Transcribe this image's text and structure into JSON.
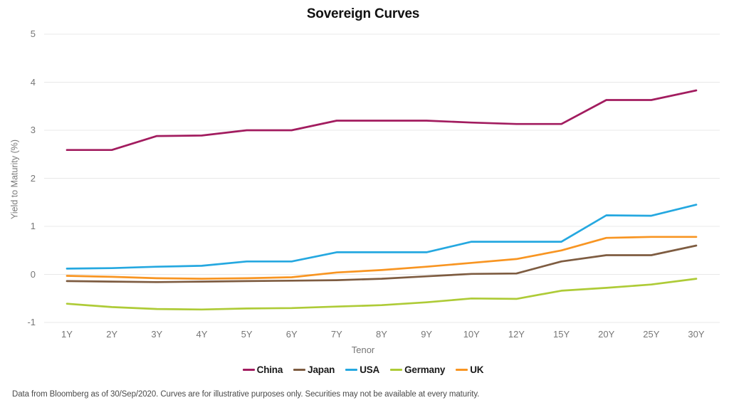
{
  "header": {
    "title": "Sovereign Curves"
  },
  "chart_data": {
    "type": "line",
    "title": "Sovereign Curves",
    "xlabel": "Tenor",
    "ylabel": "Yield to Maturity (%)",
    "ylim": [
      -1,
      5
    ],
    "yticks": [
      5,
      4,
      3,
      2,
      1,
      0,
      -1
    ],
    "grid": "horizontal-only",
    "grid_color": "#e8e8e8",
    "legend_position": "bottom-center",
    "categories": [
      "1Y",
      "2Y",
      "3Y",
      "4Y",
      "5Y",
      "6Y",
      "7Y",
      "8Y",
      "9Y",
      "10Y",
      "12Y",
      "15Y",
      "20Y",
      "25Y",
      "30Y"
    ],
    "series": [
      {
        "name": "China",
        "color": "#A21C5F",
        "values": [
          2.59,
          2.59,
          2.88,
          2.89,
          3.0,
          3.0,
          3.2,
          3.2,
          3.2,
          3.16,
          3.13,
          3.13,
          3.63,
          3.63,
          3.83
        ]
      },
      {
        "name": "Japan",
        "color": "#7E5C41",
        "values": [
          -0.14,
          -0.15,
          -0.16,
          -0.15,
          -0.14,
          -0.13,
          -0.12,
          -0.09,
          -0.04,
          0.01,
          0.02,
          0.27,
          0.4,
          0.4,
          0.6
        ]
      },
      {
        "name": "USA",
        "color": "#25A8E0",
        "values": [
          0.12,
          0.13,
          0.16,
          0.18,
          0.27,
          0.27,
          0.46,
          0.46,
          0.46,
          0.68,
          0.68,
          0.68,
          1.23,
          1.22,
          1.45
        ]
      },
      {
        "name": "Germany",
        "color": "#AECB37",
        "values": [
          -0.61,
          -0.68,
          -0.72,
          -0.73,
          -0.71,
          -0.7,
          -0.67,
          -0.64,
          -0.58,
          -0.5,
          -0.51,
          -0.34,
          -0.28,
          -0.21,
          -0.09
        ]
      },
      {
        "name": "UK",
        "color": "#F89522",
        "values": [
          -0.03,
          -0.05,
          -0.08,
          -0.09,
          -0.08,
          -0.06,
          0.04,
          0.09,
          0.16,
          0.24,
          0.32,
          0.5,
          0.76,
          0.78,
          0.78
        ]
      }
    ]
  },
  "footnote": "Data from Bloomberg as of 30/Sep/2020.  Curves are for illustrative purposes only. Securities may not be available at every maturity."
}
